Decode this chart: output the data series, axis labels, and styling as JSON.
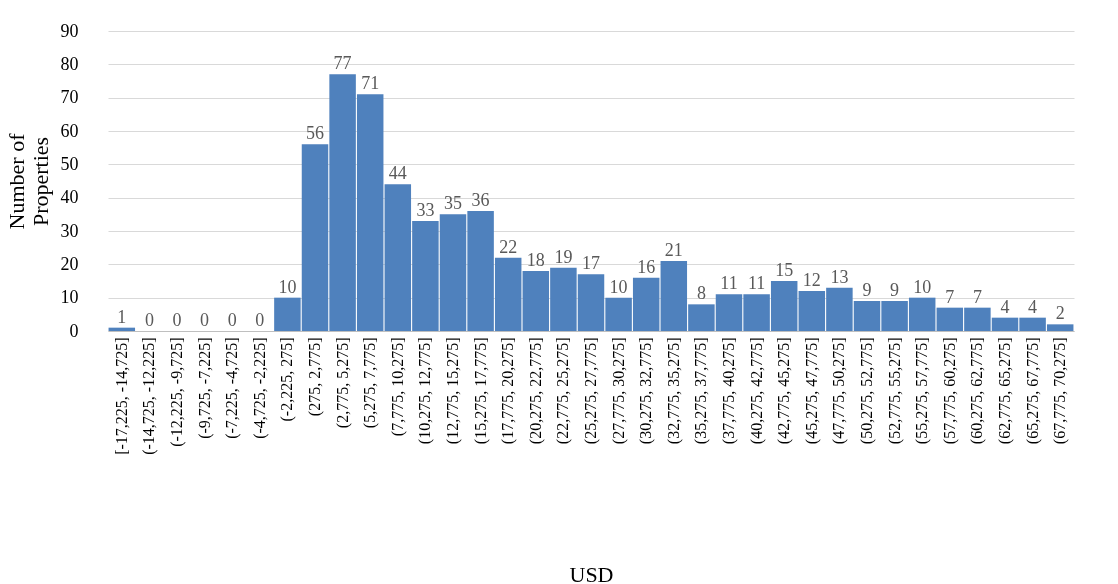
{
  "chart_data": {
    "type": "bar",
    "xlabel": "USD",
    "ylabel": "Number of Properties",
    "categories": [
      "[-17,225, -14,725]",
      "(-14,725, -12,225]",
      "(-12,225, -9,725]",
      "(-9,725, -7,225]",
      "(-7,225, -4,725]",
      "(-4,725, -2,225]",
      "(-2,225, 275]",
      "(275, 2,775]",
      "(2,775, 5,275]",
      "(5,275, 7,775]",
      "(7,775, 10,275]",
      "(10,275, 12,775]",
      "(12,775, 15,275]",
      "(15,275, 17,775]",
      "(17,775, 20,275]",
      "(20,275, 22,775]",
      "(22,775, 25,275]",
      "(25,275, 27,775]",
      "(27,775, 30,275]",
      "(30,275, 32,775]",
      "(32,775, 35,275]",
      "(35,275, 37,775]",
      "(37,775, 40,275]",
      "(40,275, 42,775]",
      "(42,775, 45,275]",
      "(45,275, 47,775]",
      "(47,775, 50,275]",
      "(50,275, 52,775]",
      "(52,775, 55,275]",
      "(55,275, 57,775]",
      "(57,775, 60,275]",
      "(60,275, 62,775]",
      "(62,775, 65,275]",
      "(65,275, 67,775]",
      "(67,775, 70,275]"
    ],
    "values": [
      1,
      0,
      0,
      0,
      0,
      0,
      10,
      56,
      77,
      71,
      44,
      33,
      35,
      36,
      22,
      18,
      19,
      17,
      10,
      16,
      21,
      8,
      11,
      11,
      15,
      12,
      13,
      9,
      9,
      10,
      7,
      7,
      4,
      4,
      2
    ],
    "color": "#4f81bd",
    "ylim": [
      0,
      90
    ],
    "yticks": [
      0,
      10,
      20,
      30,
      40,
      50,
      60,
      70,
      80,
      90
    ],
    "grid": "y",
    "data_labels": true
  }
}
